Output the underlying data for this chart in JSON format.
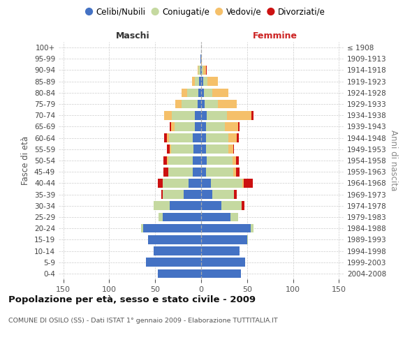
{
  "age_groups_bottom_to_top": [
    "0-4",
    "5-9",
    "10-14",
    "15-19",
    "20-24",
    "25-29",
    "30-34",
    "35-39",
    "40-44",
    "45-49",
    "50-54",
    "55-59",
    "60-64",
    "65-69",
    "70-74",
    "75-79",
    "80-84",
    "85-89",
    "90-94",
    "95-99",
    "100+"
  ],
  "birth_years_bottom_to_top": [
    "2004-2008",
    "1999-2003",
    "1994-1998",
    "1989-1993",
    "1984-1988",
    "1979-1983",
    "1974-1978",
    "1969-1973",
    "1964-1968",
    "1959-1963",
    "1954-1958",
    "1949-1953",
    "1944-1948",
    "1939-1943",
    "1934-1938",
    "1929-1933",
    "1924-1928",
    "1919-1923",
    "1914-1918",
    "1909-1913",
    "≤ 1908"
  ],
  "male_celibi": [
    47,
    60,
    52,
    58,
    63,
    42,
    34,
    19,
    14,
    9,
    9,
    8,
    9,
    7,
    7,
    4,
    3,
    2,
    1,
    1,
    0
  ],
  "male_coniugati": [
    0,
    0,
    0,
    0,
    2,
    4,
    18,
    23,
    28,
    27,
    27,
    25,
    26,
    22,
    25,
    17,
    12,
    5,
    2,
    0,
    0
  ],
  "male_vedovi": [
    0,
    0,
    0,
    0,
    0,
    0,
    0,
    0,
    0,
    0,
    1,
    1,
    2,
    4,
    8,
    7,
    6,
    3,
    1,
    0,
    0
  ],
  "male_divorziati": [
    0,
    0,
    0,
    0,
    0,
    0,
    0,
    1,
    5,
    5,
    4,
    3,
    3,
    1,
    0,
    0,
    0,
    0,
    0,
    0,
    0
  ],
  "female_nubili": [
    43,
    48,
    42,
    50,
    54,
    32,
    22,
    12,
    11,
    5,
    6,
    5,
    5,
    5,
    6,
    4,
    3,
    2,
    1,
    0,
    0
  ],
  "female_coniugate": [
    0,
    0,
    0,
    1,
    3,
    8,
    22,
    24,
    34,
    30,
    28,
    25,
    25,
    21,
    22,
    14,
    9,
    5,
    1,
    0,
    0
  ],
  "female_vedove": [
    0,
    0,
    0,
    0,
    0,
    0,
    0,
    0,
    1,
    3,
    4,
    5,
    9,
    14,
    27,
    21,
    18,
    11,
    3,
    1,
    0
  ],
  "female_divorziate": [
    0,
    0,
    0,
    0,
    0,
    0,
    3,
    3,
    10,
    4,
    3,
    1,
    2,
    2,
    2,
    0,
    0,
    0,
    1,
    0,
    0
  ],
  "color_celibi": "#4472c4",
  "color_coniugati": "#c5d9a0",
  "color_vedovi": "#f5c06a",
  "color_divorziati": "#cc1111",
  "xlim": 155,
  "title": "Popolazione per età, sesso e stato civile - 2009",
  "subtitle": "COMUNE DI OSILO (SS) - Dati ISTAT 1° gennaio 2009 - Elaborazione TUTTITALIA.IT",
  "label_maschi": "Maschi",
  "label_femmine": "Femmine",
  "ylabel_left": "Fasce di età",
  "ylabel_right": "Anni di nascita",
  "legend_labels": [
    "Celibi/Nubili",
    "Coniugati/e",
    "Vedovi/e",
    "Divorziati/e"
  ]
}
